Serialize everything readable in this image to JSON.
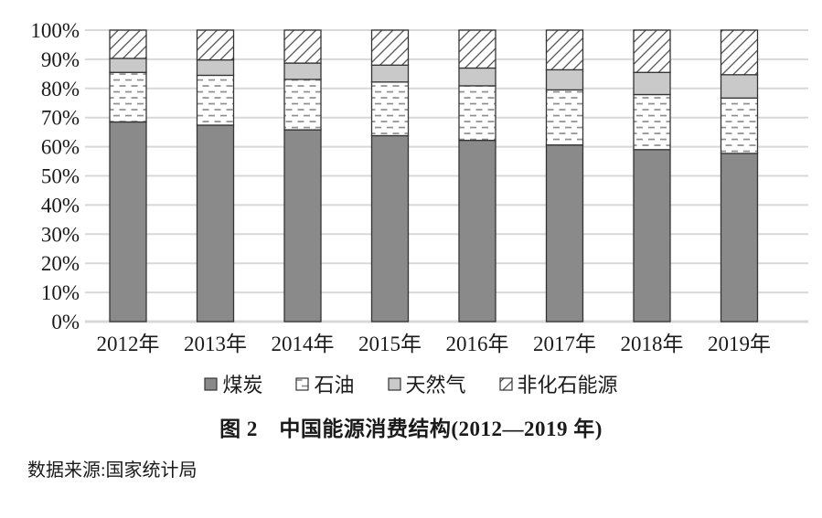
{
  "figure": {
    "caption": "图 2　中国能源消费结构(2012—2019 年)",
    "source": "数据来源:国家统计局"
  },
  "chart_data": {
    "type": "bar",
    "stacked": true,
    "title": "图 2 中国能源消费结构(2012—2019 年)",
    "categories": [
      "2012年",
      "2013年",
      "2014年",
      "2015年",
      "2016年",
      "2017年",
      "2018年",
      "2019年"
    ],
    "series": [
      {
        "name": "煤炭",
        "key": "coal",
        "style": "solid",
        "color": "#8a8a8a",
        "values": [
          68.5,
          67.4,
          65.8,
          63.8,
          62.2,
          60.6,
          59.0,
          57.7
        ]
      },
      {
        "name": "石油",
        "key": "oil",
        "style": "pattern",
        "pattern": "oil",
        "values": [
          17.0,
          17.1,
          17.3,
          18.4,
          18.7,
          18.9,
          18.9,
          19.0
        ]
      },
      {
        "name": "天然气",
        "key": "gas",
        "style": "solid",
        "color": "#c9c9c9",
        "values": [
          4.8,
          5.3,
          5.6,
          5.8,
          6.1,
          6.9,
          7.6,
          8.0
        ]
      },
      {
        "name": "非化石能源",
        "key": "nonfossil",
        "style": "pattern",
        "pattern": "hatch",
        "values": [
          9.7,
          10.2,
          11.3,
          12.0,
          13.0,
          13.6,
          14.5,
          15.3
        ]
      }
    ],
    "xlabel": "",
    "ylabel": "",
    "ytick_labels": [
      "0%",
      "10%",
      "20%",
      "30%",
      "40%",
      "50%",
      "60%",
      "70%",
      "80%",
      "90%",
      "100%"
    ],
    "ylim": [
      0,
      100
    ],
    "grid": true,
    "legend_position": "bottom",
    "colors": {
      "bar_border": "#333333",
      "grid_line": "#d8d8d8",
      "oil_dash": "#8f8f8f",
      "hatch_line": "#3d3d3d",
      "text": "#1a1a1a"
    }
  }
}
